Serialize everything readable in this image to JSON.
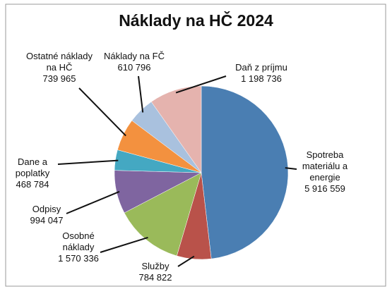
{
  "chart_data": {
    "type": "pie",
    "title": "Náklady na HČ 2024",
    "categories": [
      "Spotreba materiálu a energie",
      "Služby",
      "Osobné náklady",
      "Odpisy",
      "Dane a poplatky",
      "Ostatné náklady na HČ",
      "Náklady na FČ",
      "Daň z príjmu"
    ],
    "values": [
      5916559,
      784822,
      1570336,
      994047,
      468784,
      739965,
      610796,
      1198736
    ],
    "value_labels": [
      "5 916 559",
      "784 822",
      "1 570 336",
      "994 047",
      "468 784",
      "739 965",
      "610 796",
      "1 198 736"
    ],
    "colors": [
      "#4a7eb2",
      "#b9524a",
      "#9aba5a",
      "#7f65a0",
      "#44a8c2",
      "#f3913f",
      "#a9c1de",
      "#e5b3ae"
    ]
  }
}
